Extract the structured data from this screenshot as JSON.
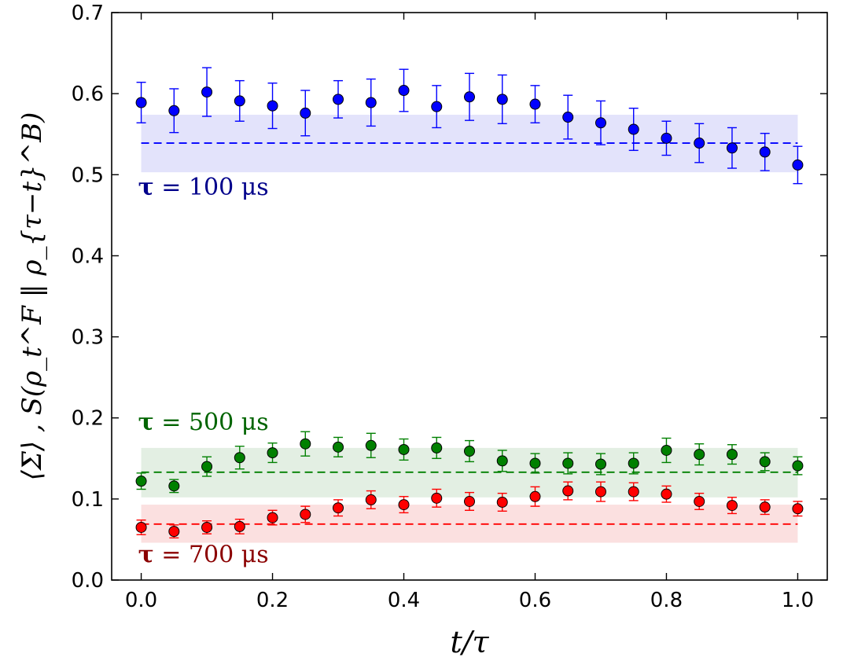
{
  "chart_data": {
    "type": "scatter",
    "title": "",
    "xlabel": "t/τ",
    "ylabel": "⟨Σ⟩ , S(ρ_t^F ‖ ρ_{τ−t}^B)",
    "xlim": [
      -0.045,
      1.045
    ],
    "ylim": [
      0.0,
      0.7
    ],
    "xticks": [
      0.0,
      0.2,
      0.4,
      0.6,
      0.8,
      1.0
    ],
    "xtick_labels": [
      "0.0",
      "0.2",
      "0.4",
      "0.6",
      "0.8",
      "1.0"
    ],
    "yticks": [
      0.0,
      0.1,
      0.2,
      0.3,
      0.4,
      0.5,
      0.6,
      0.7
    ],
    "ytick_labels": [
      "0.0",
      "0.1",
      "0.2",
      "0.3",
      "0.4",
      "0.5",
      "0.6",
      "0.7"
    ],
    "grid": false,
    "x": [
      0.0,
      0.05,
      0.1,
      0.15,
      0.2,
      0.25,
      0.3,
      0.35,
      0.4,
      0.45,
      0.5,
      0.55,
      0.6,
      0.65,
      0.7,
      0.75,
      0.8,
      0.85,
      0.9,
      0.95,
      1.0
    ],
    "series": [
      {
        "name": "τ = 100 μs",
        "label_symbol": "τ",
        "label_text": " = 100 μs",
        "color": "#0000ff",
        "label_color": "#00008b",
        "band_color": "#e3e3fb",
        "values": [
          0.589,
          0.579,
          0.602,
          0.591,
          0.585,
          0.576,
          0.593,
          0.589,
          0.604,
          0.584,
          0.596,
          0.593,
          0.587,
          0.571,
          0.564,
          0.556,
          0.545,
          0.539,
          0.533,
          0.528,
          0.512
        ],
        "errors": [
          0.025,
          0.027,
          0.03,
          0.025,
          0.028,
          0.028,
          0.023,
          0.029,
          0.026,
          0.026,
          0.029,
          0.03,
          0.023,
          0.027,
          0.027,
          0.026,
          0.021,
          0.024,
          0.025,
          0.023,
          0.023
        ],
        "mean": 0.539,
        "band": [
          0.503,
          0.574
        ],
        "label_pos": [
          0.0,
          0.475
        ]
      },
      {
        "name": "τ = 500 μs",
        "label_symbol": "τ",
        "label_text": " = 500 μs",
        "color": "#008000",
        "label_color": "#006400",
        "band_color": "#e3efe3",
        "values": [
          0.122,
          0.116,
          0.14,
          0.151,
          0.157,
          0.168,
          0.164,
          0.166,
          0.161,
          0.163,
          0.159,
          0.147,
          0.144,
          0.144,
          0.143,
          0.144,
          0.16,
          0.155,
          0.155,
          0.146,
          0.141
        ],
        "errors": [
          0.01,
          0.008,
          0.012,
          0.014,
          0.012,
          0.015,
          0.012,
          0.015,
          0.013,
          0.013,
          0.013,
          0.013,
          0.012,
          0.013,
          0.013,
          0.013,
          0.015,
          0.013,
          0.012,
          0.011,
          0.011
        ],
        "mean": 0.133,
        "band": [
          0.102,
          0.163
        ],
        "label_pos": [
          0.0,
          0.185
        ]
      },
      {
        "name": "τ = 700 μs",
        "label_symbol": "τ",
        "label_text": " = 700 μs",
        "color": "#ff0000",
        "label_color": "#8b0000",
        "band_color": "#fbe0e0",
        "values": [
          0.065,
          0.06,
          0.065,
          0.066,
          0.077,
          0.081,
          0.089,
          0.099,
          0.093,
          0.101,
          0.097,
          0.096,
          0.103,
          0.11,
          0.109,
          0.109,
          0.106,
          0.097,
          0.092,
          0.09,
          0.088
        ],
        "errors": [
          0.009,
          0.008,
          0.008,
          0.009,
          0.009,
          0.01,
          0.01,
          0.011,
          0.01,
          0.011,
          0.011,
          0.011,
          0.012,
          0.011,
          0.012,
          0.011,
          0.01,
          0.01,
          0.01,
          0.009,
          0.009
        ],
        "mean": 0.069,
        "band": [
          0.046,
          0.093
        ],
        "label_pos": [
          0.0,
          0.022
        ]
      }
    ]
  }
}
